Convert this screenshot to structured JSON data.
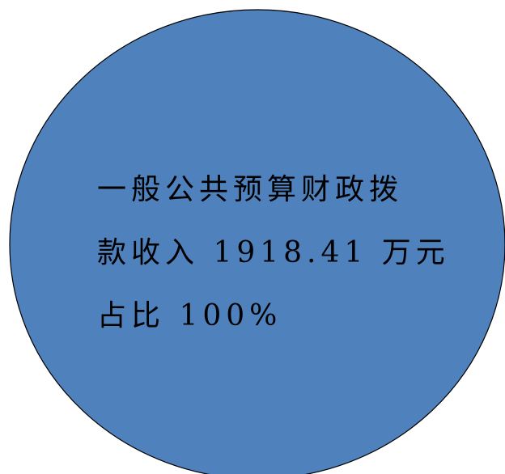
{
  "colors": {
    "slice_fill": "#4f81bd",
    "slice_stroke": "#000000"
  },
  "chart_data": {
    "type": "pie",
    "categories": [
      "一般公共预算财政拨款收入"
    ],
    "values": [
      1918.41
    ],
    "shares": [
      100
    ],
    "unit": "万元",
    "title": "",
    "legend": "none",
    "data_label_lines": [
      "一般公共预算财政拨",
      "款收入 1918.41 万元",
      "占比 100%"
    ]
  }
}
